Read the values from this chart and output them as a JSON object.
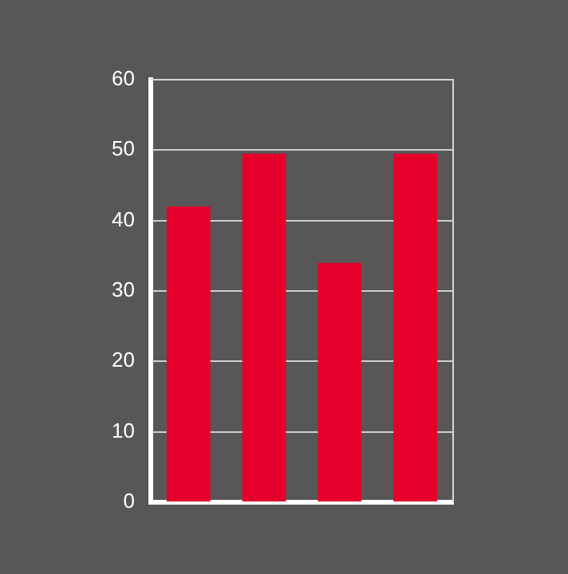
{
  "chart_data": {
    "type": "bar",
    "categories": [
      null,
      null,
      null,
      null
    ],
    "values": [
      42,
      49.5,
      34,
      49.5
    ],
    "color": "#e4002b",
    "ylim": [
      0,
      60
    ],
    "yticks": [
      0,
      10,
      20,
      30,
      40,
      50,
      60
    ],
    "grid": "y",
    "legend": false
  }
}
